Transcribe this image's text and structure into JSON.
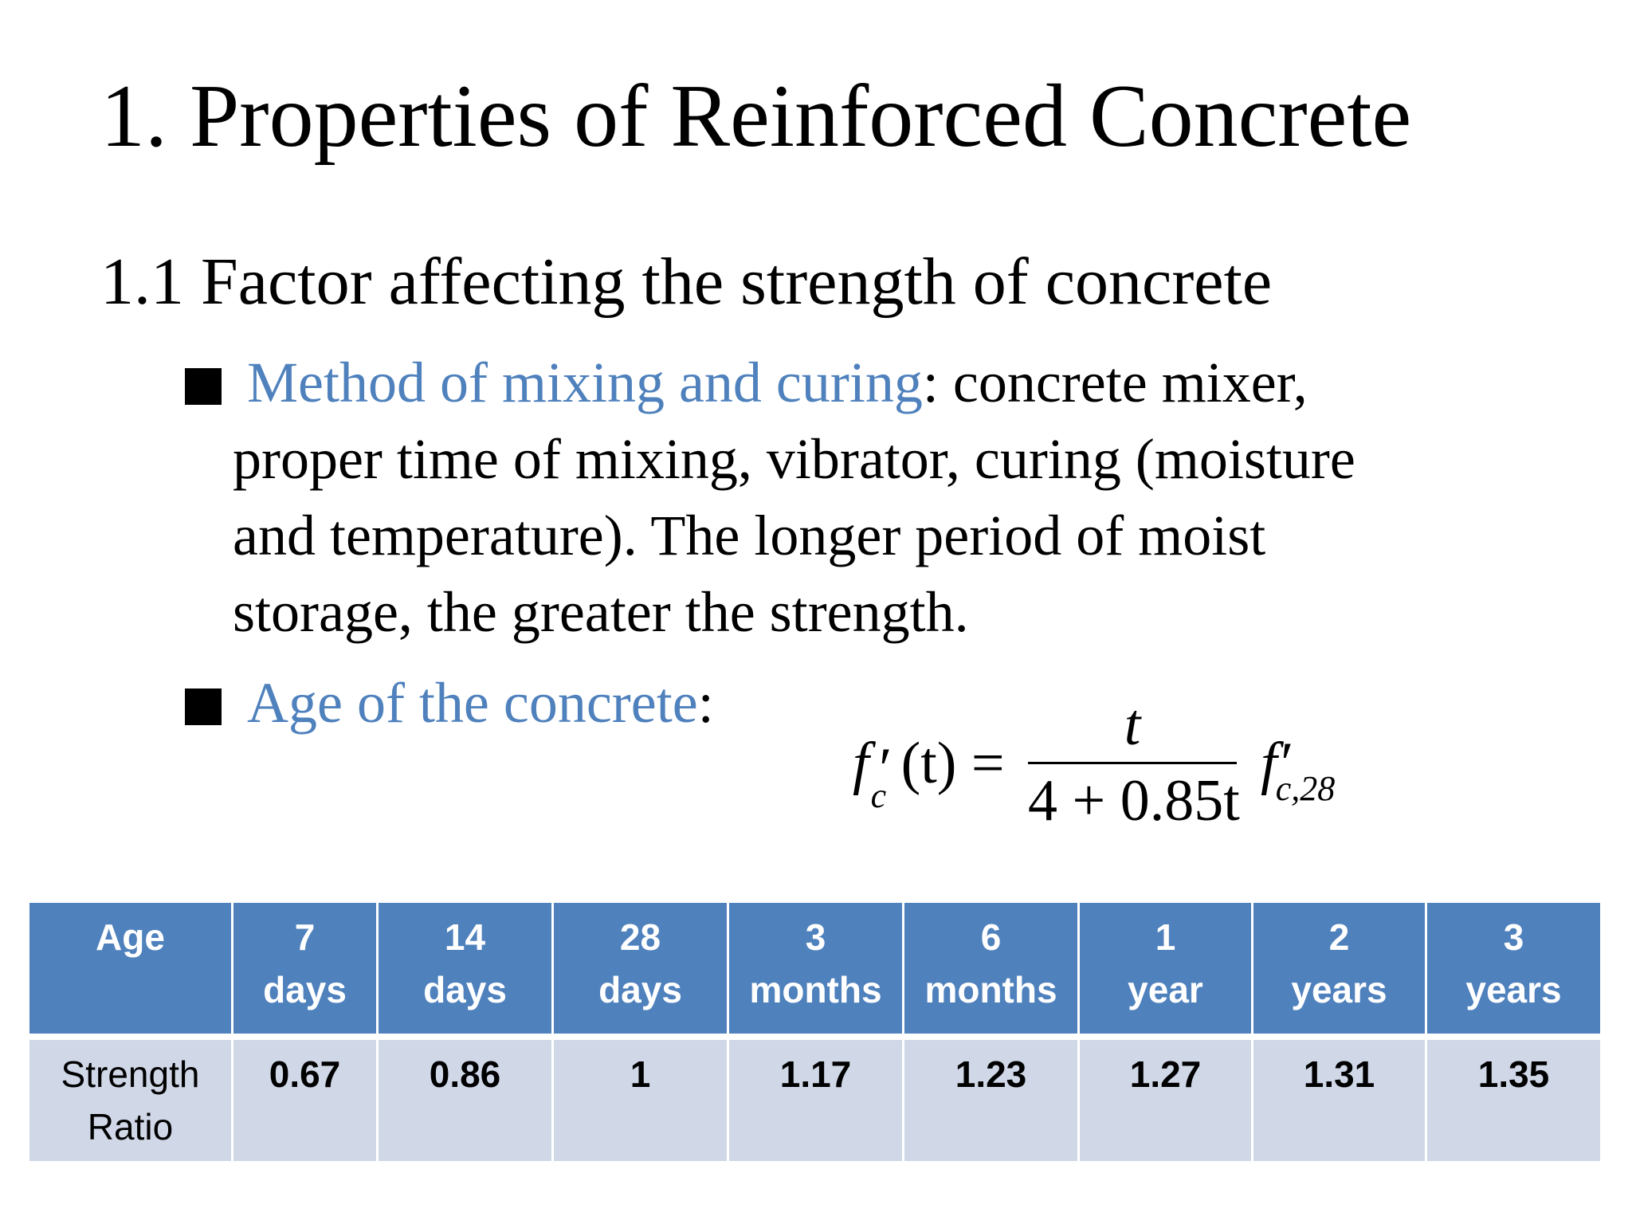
{
  "title": "1. Properties of Reinforced Concrete",
  "section": "1.1 Factor affecting the strength of concrete",
  "bullets": [
    {
      "highlight": "Method of mixing and curing",
      "lines": [
        ": concrete mixer,",
        "proper time of mixing, vibrator, curing (moisture",
        "and temperature). The longer period of moist",
        "storage, the greater the strength."
      ]
    },
    {
      "highlight": "Age of the concrete",
      "lines": [
        ":"
      ]
    }
  ],
  "formula": {
    "lhs_f": "f",
    "lhs_sub": "c",
    "lhs_prime": "′",
    "lhs_arg": "(t) =",
    "numerator": "t",
    "denominator": "4 + 0.85t",
    "rhs_f": "f",
    "rhs_prime": "′",
    "rhs_sub": "c,28"
  },
  "table": {
    "header_label": "Age",
    "columns": [
      {
        "top": "7",
        "bottom": "days"
      },
      {
        "top": "14",
        "bottom": "days"
      },
      {
        "top": "28",
        "bottom": "days"
      },
      {
        "top": "3",
        "bottom": "months"
      },
      {
        "top": "6",
        "bottom": "months"
      },
      {
        "top": "1",
        "bottom": "year"
      },
      {
        "top": "2",
        "bottom": "years"
      },
      {
        "top": "3",
        "bottom": "years"
      }
    ],
    "row_label_line1": "Strength",
    "row_label_line2": "Ratio",
    "values": [
      "0.67",
      "0.86",
      "1",
      "1.17",
      "1.23",
      "1.27",
      "1.31",
      "1.35"
    ]
  },
  "colors": {
    "accent": "#4f81bd",
    "header_bg": "#4f81bd",
    "cell_bg": "#d0d8e8"
  }
}
